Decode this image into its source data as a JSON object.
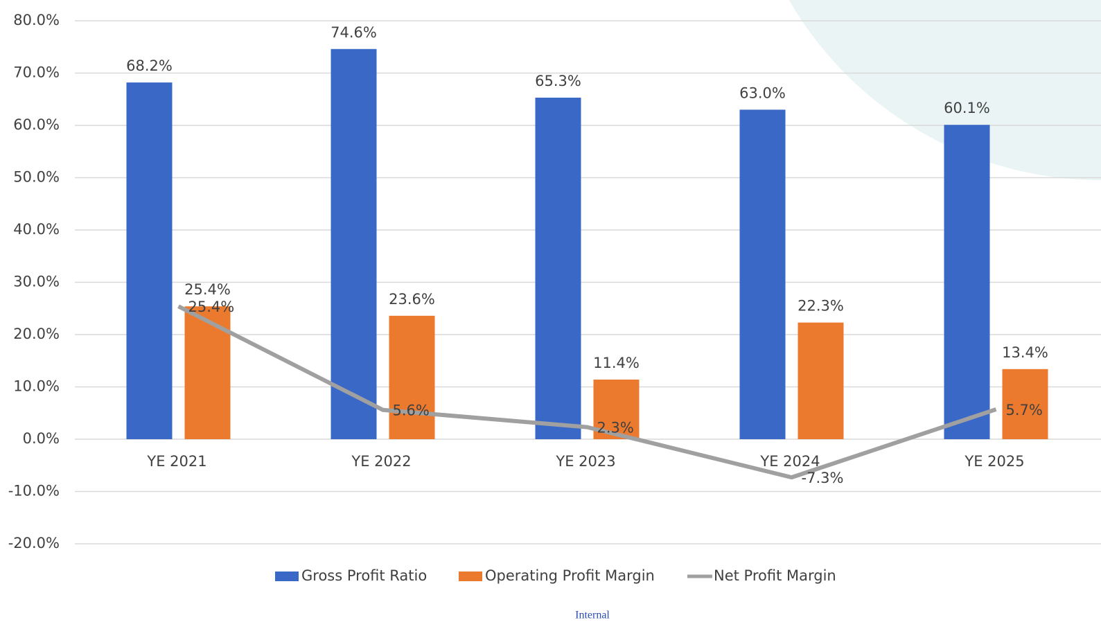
{
  "chart_data": {
    "type": "bar",
    "categories": [
      "YE 2021",
      "YE 2022",
      "YE 2023",
      "YE 2024",
      "YE 2025"
    ],
    "series": [
      {
        "name": "Gross Profit Ratio",
        "color": "#3a68c6",
        "values": [
          68.2,
          74.6,
          65.3,
          63.0,
          60.1
        ],
        "value_labels": [
          "68.2%",
          "74.6%",
          "65.3%",
          "63.0%",
          "60.1%"
        ]
      },
      {
        "name": "Operating Profit Margin",
        "color": "#ec7a2e",
        "values": [
          25.4,
          23.6,
          11.4,
          22.3,
          13.4
        ],
        "value_labels": [
          "25.4%",
          "23.6%",
          "11.4%",
          "22.3%",
          "13.4%"
        ]
      },
      {
        "name": "Net Profit Margin",
        "type": "line",
        "color": "#a0a0a0",
        "values": [
          25.4,
          5.6,
          2.3,
          -7.3,
          5.7
        ],
        "value_labels": [
          "25.4%",
          "5.6%",
          "2.3%",
          "-7.3%",
          "5.7%"
        ]
      }
    ],
    "ylim": [
      -20,
      80
    ],
    "yticks": [
      {
        "value": -20,
        "label": "-20.0%"
      },
      {
        "value": -10,
        "label": "-10.0%"
      },
      {
        "value": 0,
        "label": "0.0%"
      },
      {
        "value": 10,
        "label": "10.0%"
      },
      {
        "value": 20,
        "label": "20.0%"
      },
      {
        "value": 30,
        "label": "30.0%"
      },
      {
        "value": 40,
        "label": "40.0%"
      },
      {
        "value": 50,
        "label": "50.0%"
      },
      {
        "value": 60,
        "label": "60.0%"
      },
      {
        "value": 70,
        "label": "70.0%"
      },
      {
        "value": 80,
        "label": "80.0%"
      }
    ],
    "grid": true,
    "legend": "bottom",
    "annotations": [
      "Internal"
    ]
  }
}
